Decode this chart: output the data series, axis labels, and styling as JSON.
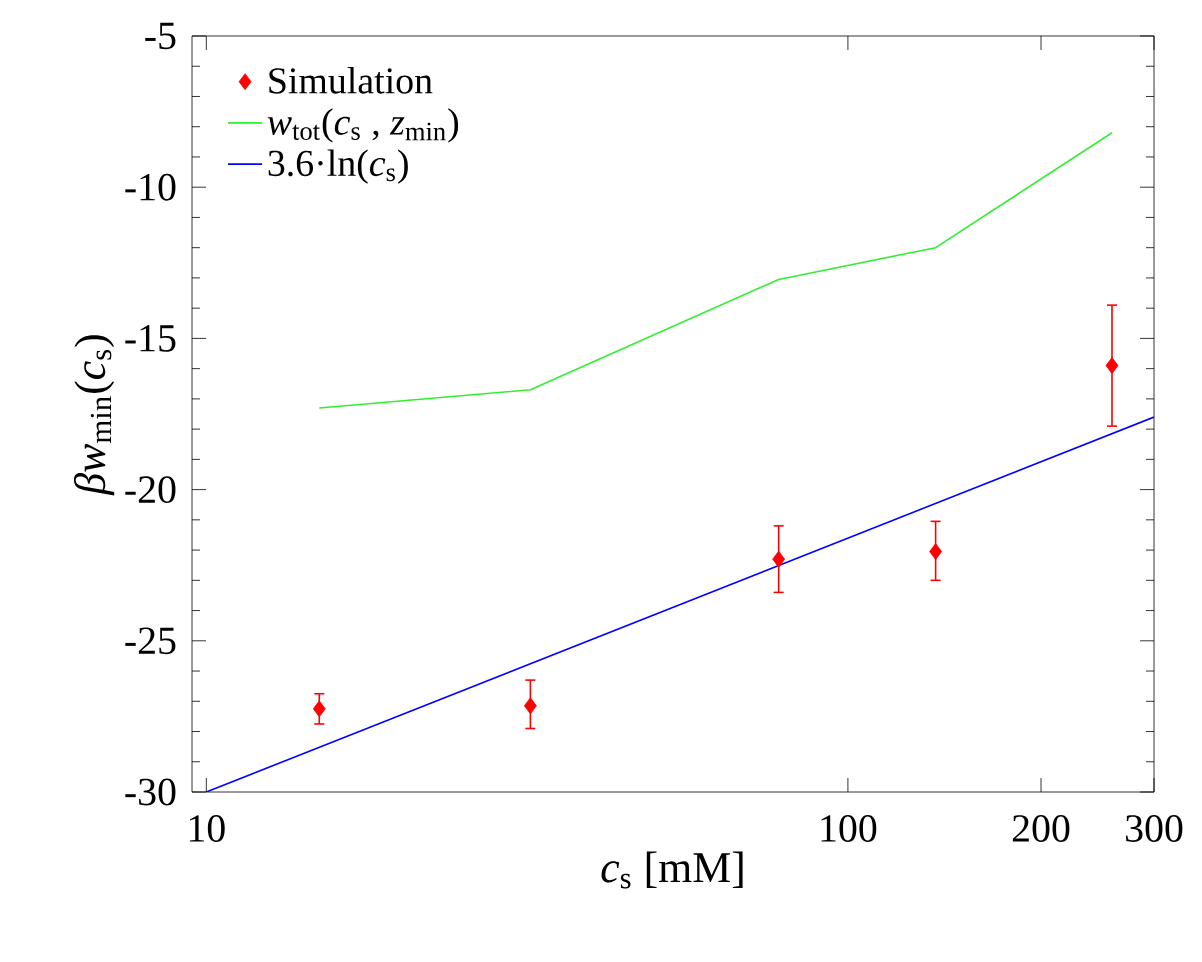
{
  "chart_data": {
    "type": "line",
    "xlabel": "*c*$_{s}$ [mM]",
    "ylabel": "*βw*$_{min}$(*c*$_{s}$)",
    "log": "x",
    "xlim": [
      9.5,
      300
    ],
    "xticks": [
      10,
      100,
      200,
      300
    ],
    "ylim": [
      -30,
      -5
    ],
    "yticks": [
      -30,
      -25,
      -20,
      -15,
      -10,
      -5
    ],
    "legend": "top left",
    "series": [
      {
        "name": "Simulation",
        "type": "scatter",
        "marker": "diamond",
        "color": "#ff0000",
        "x": [
          15,
          32,
          78,
          137,
          258
        ],
        "values": [
          -27.25,
          -27.15,
          -22.3,
          -22.05,
          -15.9
        ],
        "errors": [
          [
            -27.75,
            -26.75
          ],
          [
            -27.9,
            -26.3
          ],
          [
            -23.4,
            -21.2
          ],
          [
            -23.0,
            -21.05
          ],
          [
            -17.9,
            -13.9
          ]
        ]
      },
      {
        "name": "*w*$_{tot}$(*c*$_{s}$ , *z*$_{min}$)",
        "color": "#33ee33",
        "x": [
          15,
          32,
          78,
          137,
          258
        ],
        "values": [
          -17.3,
          -16.7,
          -13.05,
          -12.0,
          -8.2
        ]
      },
      {
        "name": "3.6·ln(*c*$_{s}$)",
        "color": "#0000ff",
        "x": [
          10,
          300
        ],
        "values": [
          -30,
          -17.6
        ]
      }
    ]
  }
}
